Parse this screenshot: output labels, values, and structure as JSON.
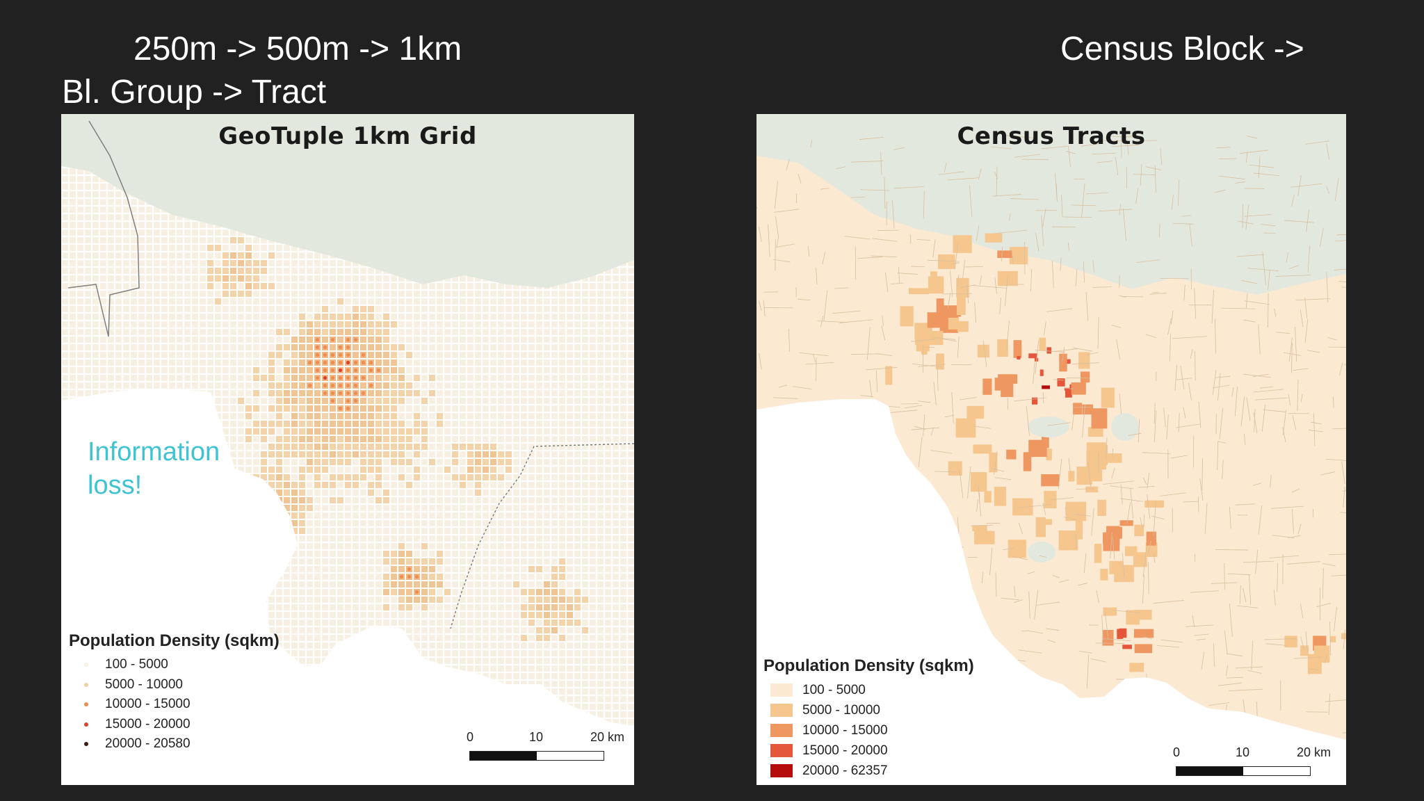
{
  "header": {
    "left_line1": "250m -> 500m -> 1km",
    "left_line2": "Bl. Group -> Tract",
    "right_line1": "Census Block ->"
  },
  "left_map": {
    "title": "GeoTuple 1km Grid",
    "annotation_line1": "Information",
    "annotation_line2": "loss!",
    "legend": {
      "title": "Population Density (sqkm)",
      "items": [
        {
          "label": "100 - 5000",
          "color": "#fbf1e3"
        },
        {
          "label": "5000 - 10000",
          "color": "#f2cf9f"
        },
        {
          "label": "10000 - 15000",
          "color": "#ef8c4f"
        },
        {
          "label": "15000 - 20000",
          "color": "#d9422b"
        },
        {
          "label": "20000 - 20580",
          "color": "#3a1d0c"
        }
      ]
    },
    "scalebar": {
      "labels": [
        "0",
        "10",
        "20 km"
      ]
    }
  },
  "right_map": {
    "title": "Census Tracts",
    "legend": {
      "title": "Population Density (sqkm)",
      "items": [
        {
          "label": "100 - 5000",
          "color": "#fbe9d2"
        },
        {
          "label": "5000 - 10000",
          "color": "#f5c78f"
        },
        {
          "label": "10000 - 15000",
          "color": "#ef9760"
        },
        {
          "label": "15000 - 20000",
          "color": "#e4573a"
        },
        {
          "label": "20000 - 62357",
          "color": "#b50c0c"
        }
      ]
    },
    "scalebar": {
      "labels": [
        "0",
        "10",
        "20 km"
      ]
    }
  },
  "colors": {
    "background": "#212121",
    "land_empty": "#e3e8df",
    "ocean": "#ffffff",
    "annotation": "#3fc3d2"
  }
}
